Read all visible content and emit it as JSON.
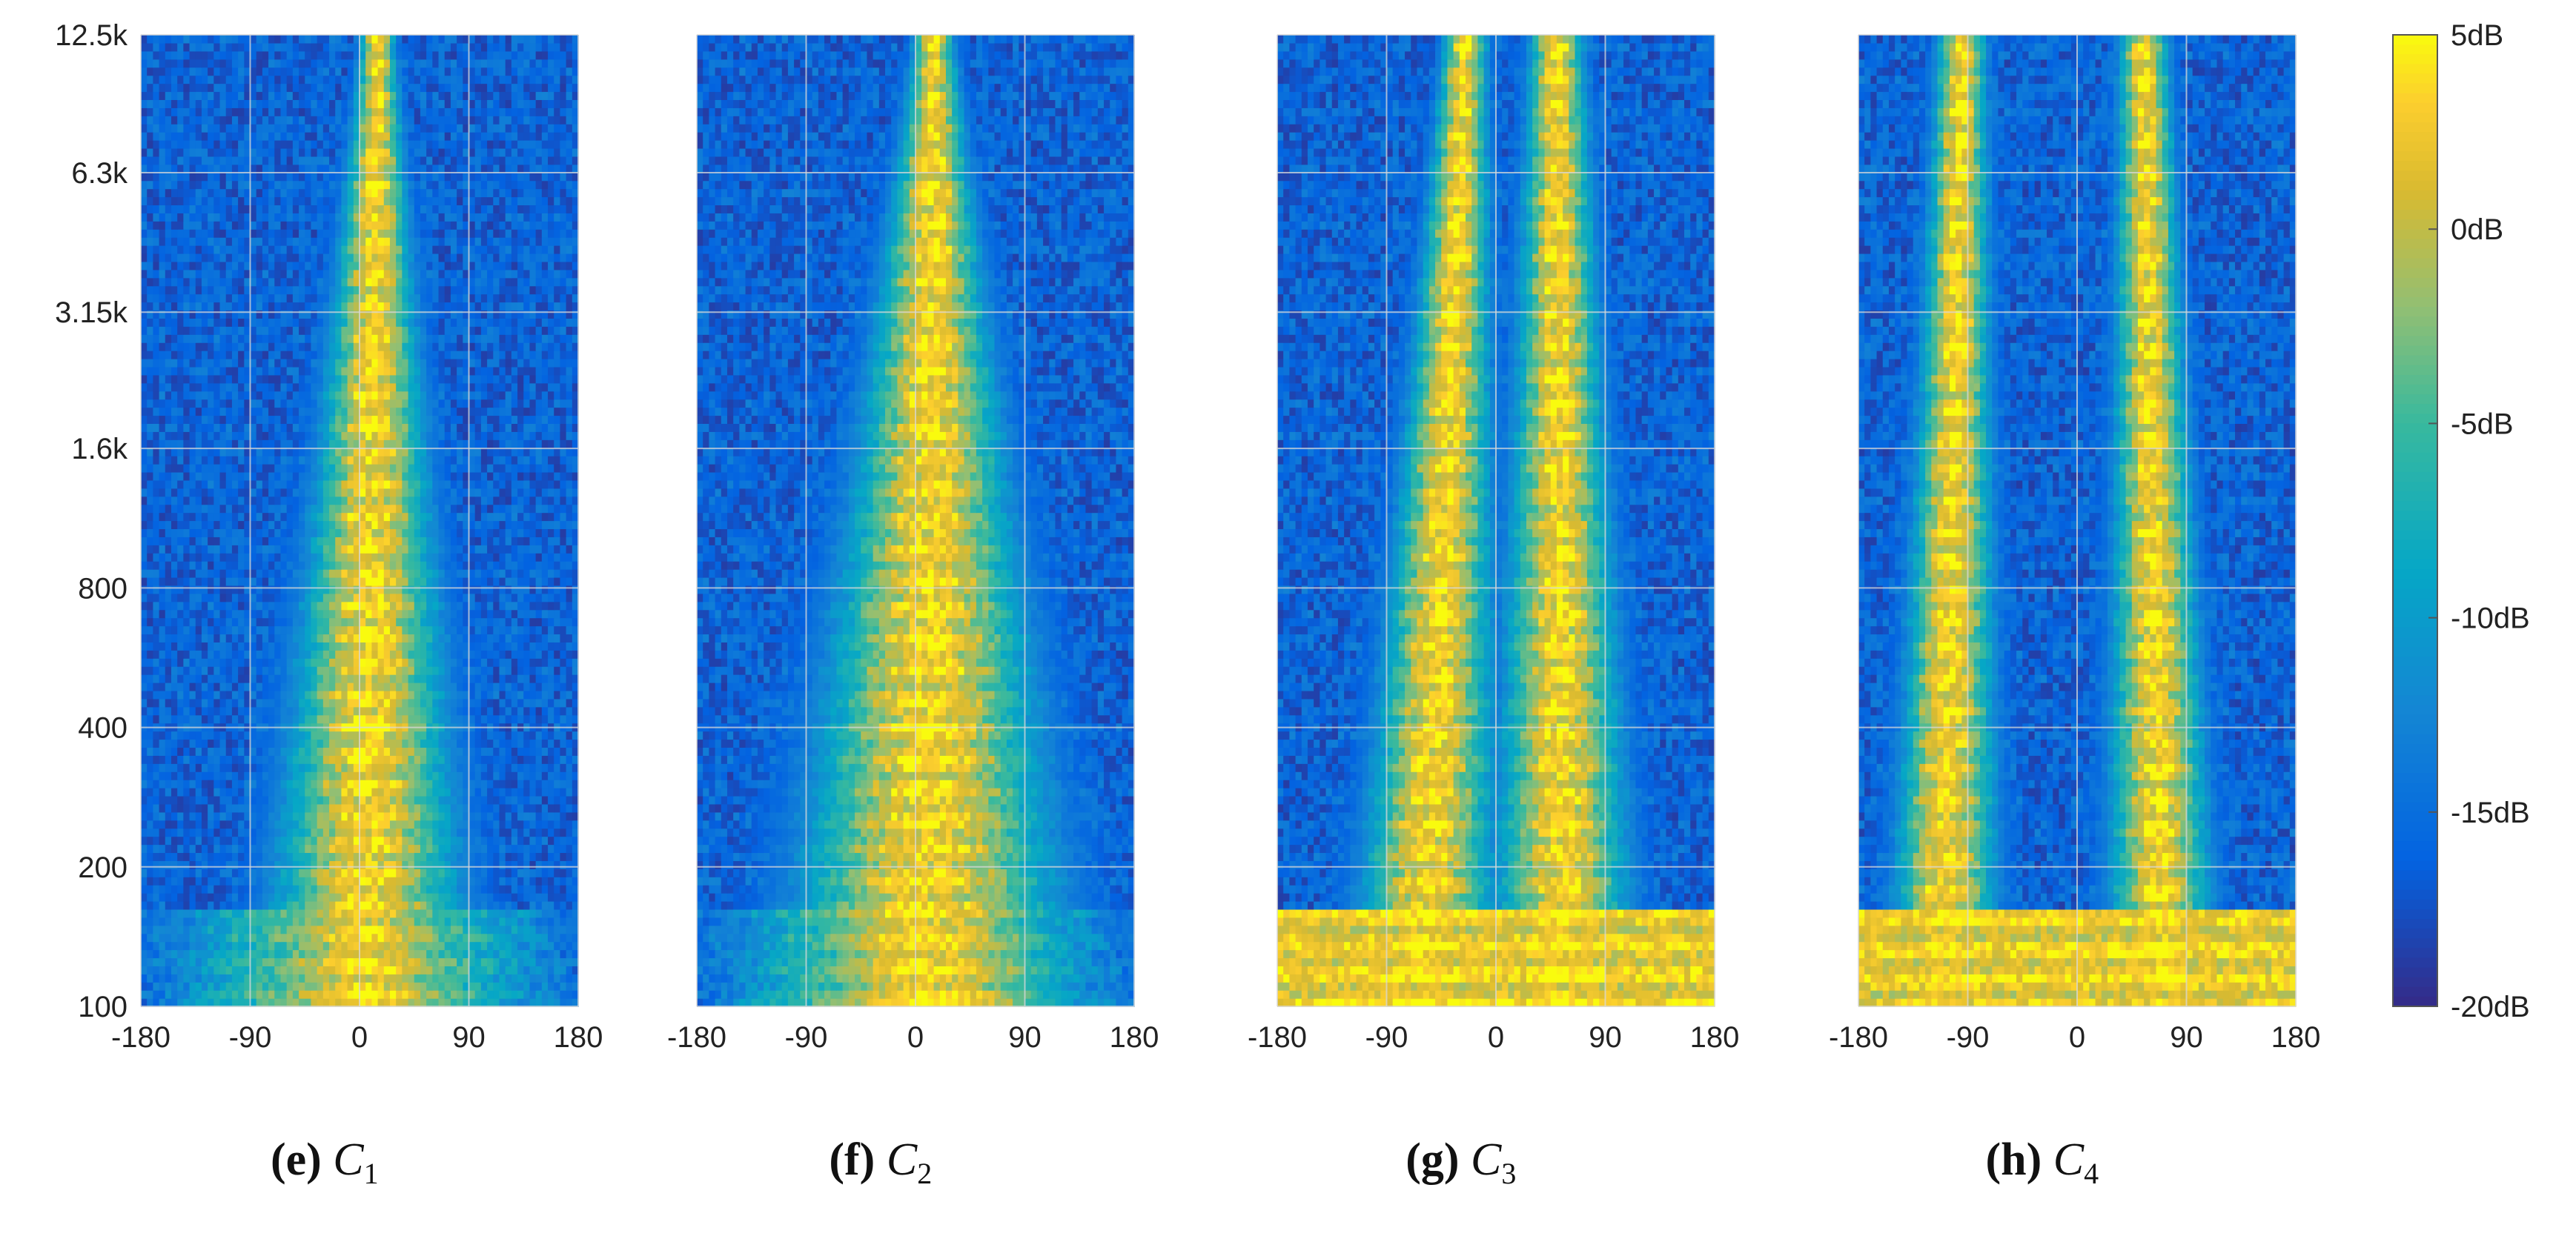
{
  "chart_data": {
    "type": "heatmap",
    "colormap": "parula",
    "grid": true,
    "x_ticks": [
      "-180",
      "-90",
      "0",
      "90",
      "180"
    ],
    "x_tick_values": [
      -180,
      -90,
      0,
      90,
      180
    ],
    "xlim": [
      -180,
      180
    ],
    "y_ticks": [
      "100",
      "200",
      "400",
      "800",
      "1.6k",
      "3.15k",
      "6.3k",
      "12.5k"
    ],
    "y_tick_values": [
      100,
      200,
      400,
      800,
      1600,
      3150,
      6300,
      12500
    ],
    "ylim": [
      100,
      12500
    ],
    "y_scale": "log",
    "colorbar": {
      "ticks": [
        "5dB",
        "0dB",
        "-5dB",
        "-10dB",
        "-15dB",
        "-20dB"
      ],
      "tick_values": [
        5,
        0,
        -5,
        -10,
        -15,
        -20
      ],
      "range": [
        -20,
        5
      ]
    },
    "panels": [
      {
        "letter": "(e)",
        "symbol": "C",
        "subscript": "1",
        "lobes": [
          {
            "azimuth_low": 5,
            "azimuth_high": 15,
            "width_low": 85,
            "width_high": 14
          }
        ]
      },
      {
        "letter": "(f)",
        "symbol": "C",
        "subscript": "2",
        "lobes": [
          {
            "azimuth_low": 10,
            "azimuth_high": 15,
            "width_low": 120,
            "width_high": 16
          }
        ]
      },
      {
        "letter": "(g)",
        "symbol": "C",
        "subscript": "3",
        "lobes": [
          {
            "azimuth_low": -60,
            "azimuth_high": -25,
            "width_low": 60,
            "width_high": 18
          },
          {
            "azimuth_low": 55,
            "azimuth_high": 50,
            "width_low": 60,
            "width_high": 22
          }
        ]
      },
      {
        "letter": "(h)",
        "symbol": "C",
        "subscript": "4",
        "lobes": [
          {
            "azimuth_low": -110,
            "azimuth_high": -95,
            "width_low": 45,
            "width_high": 20
          },
          {
            "azimuth_low": 70,
            "azimuth_high": 55,
            "width_low": 45,
            "width_high": 20
          }
        ]
      }
    ]
  }
}
